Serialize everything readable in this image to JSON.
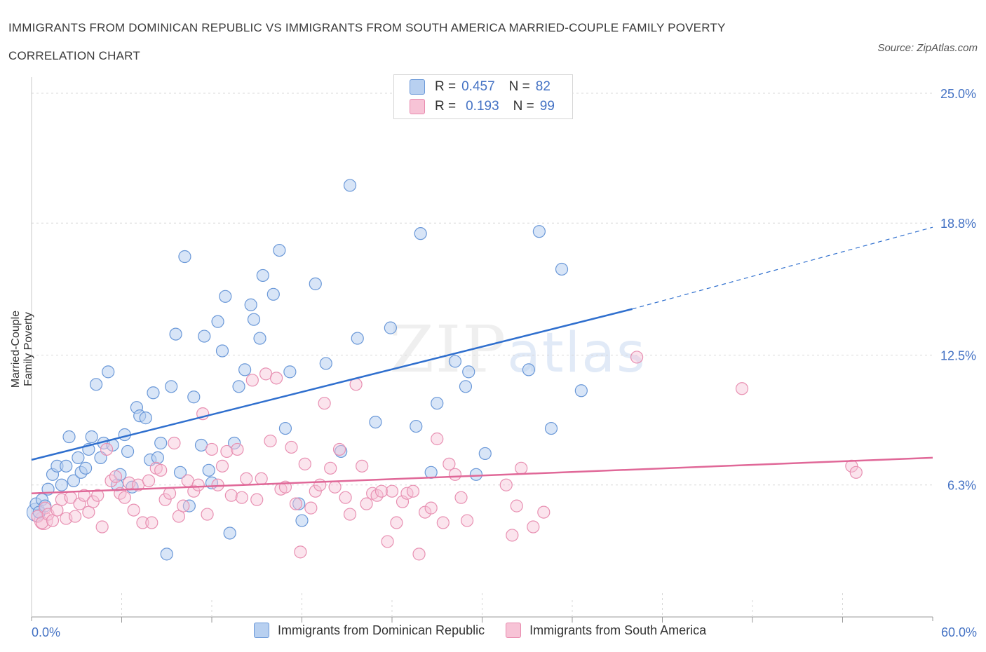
{
  "title_line1": "IMMIGRANTS FROM DOMINICAN REPUBLIC VS IMMIGRANTS FROM SOUTH AMERICA MARRIED-COUPLE FAMILY POVERTY",
  "title_line2": "CORRELATION CHART",
  "source": "Source: ZipAtlas.com",
  "watermark": {
    "zip": "ZIP",
    "atlas": "atlas"
  },
  "legend_top": {
    "row1": {
      "r_label": "R =",
      "r_value": "0.457",
      "n_label": "N =",
      "n_value": "82"
    },
    "row2": {
      "r_label": "R =",
      "r_value": "0.193",
      "n_label": "N =",
      "n_value": "99"
    }
  },
  "colors": {
    "blue": "#4a7fd0",
    "blue_fill": "#b8d0f0",
    "pink": "#e06898",
    "pink_fill": "#f7c3d6",
    "axis_label": "#4472c4"
  },
  "chart_data": {
    "type": "scatter",
    "title": "IMMIGRANTS FROM DOMINICAN REPUBLIC VS IMMIGRANTS FROM SOUTH AMERICA MARRIED-COUPLE FAMILY POVERTY CORRELATION CHART",
    "ylabel": "Married-Couple Family Poverty",
    "xlabel": "",
    "xlim": [
      0,
      60
    ],
    "ylim": [
      0,
      25.5
    ],
    "x_tick_labels": [
      "0.0%",
      "60.0%"
    ],
    "y_tick_labels": [
      "25.0%",
      "18.8%",
      "12.5%",
      "6.3%"
    ],
    "y_tick_values": [
      25.0,
      18.8,
      12.5,
      6.3
    ],
    "legend": [
      "Immigrants from Dominican Republic",
      "Immigrants from South America"
    ],
    "series": [
      {
        "name": "Immigrants from Dominican Republic",
        "R": 0.457,
        "N": 82,
        "trend": {
          "x0": 0,
          "y0": 7.5,
          "x1": 40,
          "y1": 14.7,
          "dash_to_x": 60,
          "dash_to_y": 18.6
        },
        "points": [
          [
            0.3,
            5.4
          ],
          [
            0.5,
            5.0
          ],
          [
            0.7,
            5.6
          ],
          [
            0.9,
            5.3
          ],
          [
            1.1,
            6.1
          ],
          [
            1.4,
            6.8
          ],
          [
            1.7,
            7.2
          ],
          [
            2.0,
            6.3
          ],
          [
            2.3,
            7.2
          ],
          [
            2.5,
            8.6
          ],
          [
            2.8,
            6.5
          ],
          [
            3.1,
            7.6
          ],
          [
            3.3,
            6.9
          ],
          [
            3.6,
            7.1
          ],
          [
            3.8,
            8.0
          ],
          [
            4.0,
            8.6
          ],
          [
            4.3,
            11.1
          ],
          [
            4.6,
            7.6
          ],
          [
            4.8,
            8.3
          ],
          [
            5.1,
            11.7
          ],
          [
            5.4,
            8.2
          ],
          [
            5.7,
            6.3
          ],
          [
            5.9,
            6.8
          ],
          [
            6.2,
            8.7
          ],
          [
            6.4,
            7.9
          ],
          [
            6.7,
            6.2
          ],
          [
            7.0,
            10.0
          ],
          [
            7.2,
            9.6
          ],
          [
            7.6,
            9.5
          ],
          [
            7.9,
            7.5
          ],
          [
            8.1,
            10.7
          ],
          [
            8.4,
            7.6
          ],
          [
            8.6,
            8.3
          ],
          [
            9.0,
            3.0
          ],
          [
            9.3,
            11.0
          ],
          [
            9.6,
            13.5
          ],
          [
            9.9,
            6.9
          ],
          [
            10.2,
            17.2
          ],
          [
            10.5,
            5.3
          ],
          [
            10.8,
            10.5
          ],
          [
            11.3,
            8.2
          ],
          [
            11.5,
            13.4
          ],
          [
            11.8,
            7.0
          ],
          [
            12.0,
            6.4
          ],
          [
            12.4,
            14.1
          ],
          [
            12.7,
            12.7
          ],
          [
            12.9,
            15.3
          ],
          [
            13.2,
            4.0
          ],
          [
            13.5,
            8.3
          ],
          [
            13.8,
            11.0
          ],
          [
            14.2,
            11.8
          ],
          [
            14.6,
            14.9
          ],
          [
            14.8,
            14.2
          ],
          [
            15.2,
            13.3
          ],
          [
            15.4,
            16.3
          ],
          [
            16.1,
            15.4
          ],
          [
            16.5,
            17.5
          ],
          [
            16.9,
            9.0
          ],
          [
            17.2,
            11.7
          ],
          [
            17.8,
            5.4
          ],
          [
            18.0,
            4.6
          ],
          [
            18.9,
            15.9
          ],
          [
            19.6,
            12.1
          ],
          [
            20.6,
            7.9
          ],
          [
            21.2,
            20.6
          ],
          [
            21.7,
            13.3
          ],
          [
            22.9,
            9.3
          ],
          [
            23.9,
            13.8
          ],
          [
            25.6,
            9.1
          ],
          [
            25.9,
            18.3
          ],
          [
            26.6,
            6.9
          ],
          [
            27.0,
            10.2
          ],
          [
            28.2,
            12.2
          ],
          [
            28.9,
            11.0
          ],
          [
            29.1,
            11.7
          ],
          [
            29.6,
            6.8
          ],
          [
            30.2,
            7.8
          ],
          [
            33.1,
            11.8
          ],
          [
            33.8,
            18.4
          ],
          [
            34.6,
            9.0
          ],
          [
            35.3,
            16.6
          ],
          [
            36.6,
            10.8
          ]
        ]
      },
      {
        "name": "Immigrants from South America",
        "R": 0.193,
        "N": 99,
        "trend": {
          "x0": 0,
          "y0": 5.9,
          "x1": 60,
          "y1": 7.6
        },
        "points": [
          [
            0.4,
            4.8
          ],
          [
            0.7,
            4.5
          ],
          [
            0.9,
            5.2
          ],
          [
            1.1,
            4.9
          ],
          [
            1.4,
            4.6
          ],
          [
            1.7,
            5.1
          ],
          [
            2.0,
            5.6
          ],
          [
            2.3,
            4.7
          ],
          [
            2.6,
            5.7
          ],
          [
            2.9,
            4.8
          ],
          [
            3.2,
            5.4
          ],
          [
            3.5,
            5.8
          ],
          [
            3.8,
            5.0
          ],
          [
            4.1,
            5.5
          ],
          [
            4.4,
            5.8
          ],
          [
            4.7,
            4.3
          ],
          [
            5.0,
            8.0
          ],
          [
            5.3,
            6.5
          ],
          [
            5.6,
            6.7
          ],
          [
            5.9,
            5.9
          ],
          [
            6.2,
            5.7
          ],
          [
            6.5,
            6.4
          ],
          [
            6.8,
            5.1
          ],
          [
            7.1,
            6.3
          ],
          [
            7.4,
            4.5
          ],
          [
            7.8,
            6.5
          ],
          [
            8.0,
            4.5
          ],
          [
            8.3,
            7.1
          ],
          [
            8.6,
            7.0
          ],
          [
            8.9,
            5.6
          ],
          [
            9.2,
            5.9
          ],
          [
            9.5,
            8.3
          ],
          [
            9.8,
            4.8
          ],
          [
            10.1,
            5.3
          ],
          [
            10.4,
            6.5
          ],
          [
            10.8,
            6.0
          ],
          [
            11.1,
            6.3
          ],
          [
            11.4,
            9.7
          ],
          [
            11.7,
            4.9
          ],
          [
            12.0,
            8.0
          ],
          [
            12.4,
            6.3
          ],
          [
            12.7,
            7.2
          ],
          [
            13.0,
            7.9
          ],
          [
            13.3,
            5.8
          ],
          [
            13.7,
            8.0
          ],
          [
            14.0,
            5.7
          ],
          [
            14.3,
            6.6
          ],
          [
            14.7,
            11.3
          ],
          [
            15.0,
            5.6
          ],
          [
            15.3,
            6.6
          ],
          [
            15.6,
            11.6
          ],
          [
            15.9,
            8.4
          ],
          [
            16.3,
            11.4
          ],
          [
            16.6,
            6.1
          ],
          [
            16.9,
            6.2
          ],
          [
            17.3,
            8.1
          ],
          [
            17.6,
            5.4
          ],
          [
            17.9,
            3.1
          ],
          [
            18.2,
            7.3
          ],
          [
            18.6,
            5.2
          ],
          [
            18.9,
            6.0
          ],
          [
            19.2,
            6.3
          ],
          [
            19.5,
            10.2
          ],
          [
            19.9,
            7.1
          ],
          [
            20.2,
            6.2
          ],
          [
            20.5,
            8.0
          ],
          [
            20.9,
            5.7
          ],
          [
            21.2,
            4.9
          ],
          [
            21.6,
            11.1
          ],
          [
            22.0,
            7.2
          ],
          [
            22.3,
            5.4
          ],
          [
            22.7,
            5.9
          ],
          [
            23.0,
            5.8
          ],
          [
            23.3,
            6.0
          ],
          [
            23.7,
            3.6
          ],
          [
            24.0,
            6.0
          ],
          [
            24.3,
            4.5
          ],
          [
            24.7,
            5.5
          ],
          [
            25.0,
            5.9
          ],
          [
            25.4,
            6.0
          ],
          [
            25.8,
            3.0
          ],
          [
            26.2,
            5.0
          ],
          [
            26.6,
            5.2
          ],
          [
            27.0,
            8.5
          ],
          [
            27.4,
            4.5
          ],
          [
            27.8,
            7.3
          ],
          [
            28.2,
            6.8
          ],
          [
            28.6,
            5.7
          ],
          [
            29.0,
            4.6
          ],
          [
            31.6,
            6.3
          ],
          [
            32.0,
            3.9
          ],
          [
            32.3,
            5.3
          ],
          [
            32.6,
            7.1
          ],
          [
            33.4,
            4.3
          ],
          [
            34.1,
            5.0
          ],
          [
            40.3,
            12.4
          ],
          [
            47.3,
            10.9
          ],
          [
            54.6,
            7.2
          ],
          [
            54.9,
            6.9
          ]
        ]
      }
    ]
  },
  "legend_bottom": {
    "item1": "Immigrants from Dominican Republic",
    "item2": "Immigrants from South America"
  }
}
